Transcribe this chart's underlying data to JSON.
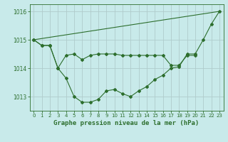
{
  "background_color": "#c8eaea",
  "grid_color": "#b0cccc",
  "line_color": "#2d6e2d",
  "title": "Graphe pression niveau de la mer (hPa)",
  "ylim": [
    1012.5,
    1016.25
  ],
  "yticks": [
    1013,
    1014,
    1015,
    1016
  ],
  "xlim": [
    -0.5,
    23.5
  ],
  "xticks": [
    0,
    1,
    2,
    3,
    4,
    5,
    6,
    7,
    8,
    9,
    10,
    11,
    12,
    13,
    14,
    15,
    16,
    17,
    18,
    19,
    20,
    21,
    22,
    23
  ],
  "series1_x": [
    0,
    1,
    2,
    3,
    4,
    5,
    6,
    7,
    8,
    9,
    10,
    11,
    12,
    13,
    14,
    15,
    16,
    17,
    18,
    19,
    20,
    21,
    22,
    23
  ],
  "series1_y": [
    1015.0,
    1014.8,
    1014.8,
    1014.0,
    1013.65,
    1013.0,
    1012.8,
    1012.8,
    1012.9,
    1013.2,
    1013.25,
    1013.1,
    1013.0,
    1013.2,
    1013.35,
    1013.6,
    1013.75,
    1014.0,
    1014.05,
    1014.5,
    1014.5,
    1015.0,
    1015.55,
    1016.0
  ],
  "series2_x": [
    0,
    1,
    2,
    3,
    4,
    5,
    6,
    7,
    8,
    9,
    10,
    11,
    12,
    13,
    14,
    15,
    16,
    17,
    18,
    19,
    20
  ],
  "series2_y": [
    1015.0,
    1014.8,
    1014.8,
    1014.0,
    1014.45,
    1014.5,
    1014.3,
    1014.45,
    1014.5,
    1014.5,
    1014.5,
    1014.45,
    1014.45,
    1014.45,
    1014.45,
    1014.45,
    1014.45,
    1014.1,
    1014.1,
    1014.45,
    1014.45
  ],
  "series3_x": [
    0,
    23
  ],
  "series3_y": [
    1015.0,
    1016.0
  ],
  "title_fontsize": 6.5,
  "tick_fontsize": 5.5,
  "xlabel_fontsize": 5.0
}
